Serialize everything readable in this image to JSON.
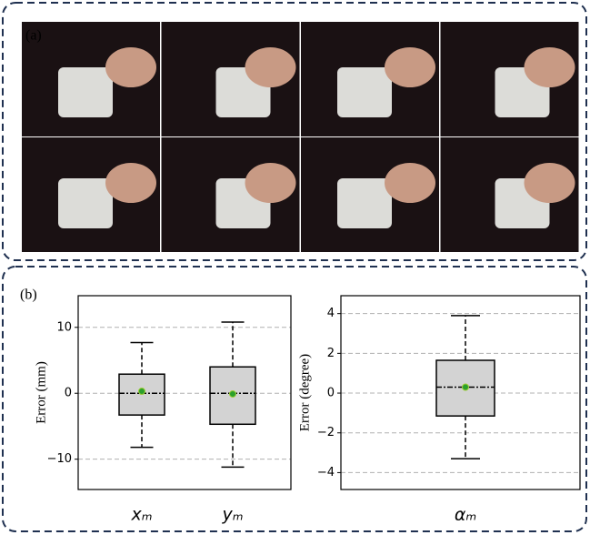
{
  "panel_labels": [
    "(a)",
    "(b)"
  ],
  "chart_data": [
    {
      "type": "box",
      "ylabel": "Error (mm)",
      "categories": [
        "xₘ",
        "yₘ"
      ],
      "boxes": [
        {
          "whislo": -8.2,
          "q1": -3.3,
          "med": 0,
          "q3": 2.9,
          "whishi": 7.7,
          "mean": 0.3
        },
        {
          "whislo": -11.2,
          "q1": -4.7,
          "med": 0,
          "q3": 4.0,
          "whishi": 10.8,
          "mean": -0.1
        }
      ],
      "ylim": [
        -14.6,
        14.8
      ],
      "yticks": [
        {
          "value": -10,
          "label": "−10"
        },
        0,
        10
      ],
      "grid": true,
      "color": "#d3d3d3",
      "mean_color": "#2ca02c"
    },
    {
      "type": "box",
      "ylabel": "Error (degree)",
      "categories": [
        "αₘ"
      ],
      "boxes": [
        {
          "whislo": -3.3,
          "q1": -1.15,
          "med": 0.3,
          "q3": 1.65,
          "whishi": 3.9,
          "mean": 0.3
        }
      ],
      "ylim": [
        -4.85,
        4.9
      ],
      "yticks": [
        {
          "value": -4,
          "label": "−4"
        },
        {
          "value": -2,
          "label": "−2"
        },
        0,
        2,
        4
      ],
      "grid": true,
      "color": "#d3d3d3",
      "mean_color": "#2ca02c"
    }
  ]
}
